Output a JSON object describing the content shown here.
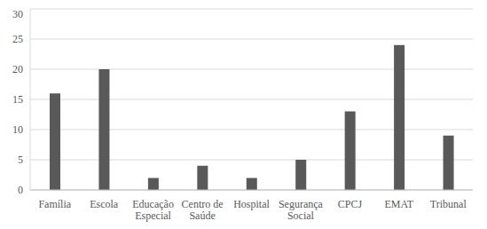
{
  "chart_data": {
    "type": "bar",
    "categories": [
      "Família",
      "Escola",
      "Educação Especial",
      "Centro de Saúde",
      "Hospital",
      "Segurança Social",
      "CPCJ",
      "EMAT",
      "Tribunal"
    ],
    "values": [
      16,
      20,
      2,
      4,
      2,
      5,
      13,
      24,
      9
    ],
    "color": "#595959",
    "ylim": [
      0,
      30
    ],
    "yticks": [
      0,
      5,
      10,
      15,
      20,
      25,
      30
    ],
    "grid": true
  }
}
